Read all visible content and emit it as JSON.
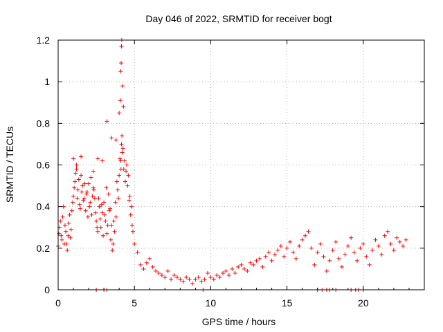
{
  "chart_data": {
    "type": "scatter",
    "title": "Day 046 of 2022, SRMTID for receiver bogt",
    "xlabel": "GPS time / hours",
    "ylabel": "SRMTID / TECUs",
    "xlim": [
      0,
      24
    ],
    "ylim": [
      0,
      1.2
    ],
    "xticks": [
      0,
      5,
      10,
      15,
      20
    ],
    "xtick_labels": [
      "0",
      "5",
      "10",
      "15",
      "20"
    ],
    "yticks": [
      0,
      0.2,
      0.4,
      0.6,
      0.8,
      1.0,
      1.2
    ],
    "ytick_labels": [
      "0",
      "0.2",
      "0.4",
      "0.6",
      "0.8",
      "1",
      "1.2"
    ],
    "grid": true,
    "marker": "+",
    "color": "#ff0000",
    "series": [
      {
        "name": "SRMTID",
        "x": [
          0.0,
          0.1,
          0.2,
          0.3,
          0.4,
          0.5,
          0.6,
          0.7,
          0.8,
          0.9,
          1.0,
          1.1,
          1.2,
          1.3,
          1.4,
          1.5,
          1.6,
          1.7,
          1.8,
          1.9,
          2.0,
          2.1,
          2.2,
          2.3,
          2.4,
          2.5,
          2.6,
          2.7,
          2.8,
          2.9,
          3.0,
          3.1,
          3.2,
          3.3,
          3.4,
          3.5,
          3.6,
          3.7,
          3.8,
          3.9,
          4.0,
          4.1,
          4.15,
          4.2,
          4.3,
          4.4,
          4.5,
          4.6,
          4.7,
          4.8,
          4.9,
          5.0,
          5.2,
          5.4,
          5.6,
          5.8,
          6.0,
          6.2,
          6.4,
          6.6,
          6.8,
          7.0,
          7.2,
          7.4,
          7.6,
          7.8,
          8.0,
          8.2,
          8.4,
          8.6,
          8.8,
          9.0,
          9.2,
          9.4,
          9.6,
          9.8,
          10.0,
          10.2,
          10.4,
          10.6,
          10.8,
          11.0,
          11.2,
          11.4,
          11.6,
          11.8,
          12.0,
          12.2,
          12.4,
          12.6,
          12.8,
          13.0,
          13.2,
          13.4,
          13.6,
          13.8,
          14.0,
          14.2,
          14.4,
          14.6,
          14.8,
          15.0,
          15.2,
          15.4,
          15.6,
          15.8,
          16.0,
          16.2,
          16.4,
          16.6,
          16.8,
          17.0,
          17.2,
          17.4,
          17.6,
          17.8,
          18.0,
          18.2,
          18.4,
          18.6,
          18.8,
          19.0,
          19.2,
          19.4,
          19.6,
          19.8,
          20.0,
          20.2,
          20.4,
          20.6,
          20.8,
          21.0,
          21.2,
          21.4,
          21.6,
          21.8,
          22.0,
          22.2,
          22.4,
          22.6,
          22.8,
          0.05,
          0.15,
          0.25,
          0.35,
          0.45,
          0.55,
          0.65,
          0.75,
          0.85,
          0.95,
          1.05,
          1.15,
          1.25,
          1.35,
          1.45,
          1.55,
          1.65,
          1.75,
          1.85,
          1.95,
          2.05,
          2.15,
          2.25,
          2.35,
          2.45,
          2.55,
          2.65,
          2.75,
          2.85,
          2.95,
          3.05,
          3.15,
          3.25,
          3.35,
          3.45,
          3.55,
          3.65,
          3.75,
          3.85,
          3.95,
          4.05,
          4.12,
          4.18,
          4.25,
          4.35,
          4.45,
          4.55,
          4.65,
          4.75,
          4.85,
          1.0,
          1.2,
          1.5,
          2.3,
          2.6,
          2.9,
          3.2,
          3.5,
          3.8,
          4.0,
          4.08,
          4.1,
          4.13,
          4.15,
          4.17,
          4.22,
          4.28,
          2.5,
          3.0,
          3.2,
          9.5,
          17.0,
          17.3,
          17.6,
          17.8,
          18.2,
          19.2,
          19.5,
          19.7,
          20.0
        ],
        "y": [
          0.21,
          0.3,
          0.26,
          0.35,
          0.22,
          0.28,
          0.19,
          0.32,
          0.25,
          0.38,
          0.45,
          0.52,
          0.58,
          0.48,
          0.41,
          0.55,
          0.5,
          0.44,
          0.38,
          0.47,
          0.51,
          0.42,
          0.36,
          0.49,
          0.44,
          0.33,
          0.28,
          0.4,
          0.3,
          0.37,
          0.42,
          0.33,
          0.27,
          0.46,
          0.39,
          0.31,
          0.22,
          0.28,
          0.35,
          0.48,
          0.55,
          0.62,
          0.7,
          0.66,
          0.58,
          0.52,
          0.6,
          0.55,
          0.45,
          0.4,
          0.28,
          0.22,
          0.18,
          0.12,
          0.1,
          0.13,
          0.15,
          0.11,
          0.09,
          0.08,
          0.07,
          0.06,
          0.09,
          0.05,
          0.07,
          0.06,
          0.05,
          0.04,
          0.06,
          0.05,
          0.03,
          0.05,
          0.06,
          0.04,
          0.05,
          0.08,
          0.06,
          0.05,
          0.07,
          0.06,
          0.08,
          0.09,
          0.07,
          0.1,
          0.08,
          0.11,
          0.12,
          0.1,
          0.09,
          0.13,
          0.12,
          0.14,
          0.15,
          0.11,
          0.16,
          0.18,
          0.14,
          0.17,
          0.19,
          0.21,
          0.16,
          0.2,
          0.23,
          0.18,
          0.15,
          0.21,
          0.24,
          0.26,
          0.28,
          0.2,
          0.12,
          0.18,
          0.22,
          0.16,
          0.09,
          0.14,
          0.19,
          0.23,
          0.15,
          0.11,
          0.17,
          0.21,
          0.25,
          0.18,
          0.14,
          0.2,
          0.22,
          0.16,
          0.12,
          0.19,
          0.24,
          0.21,
          0.17,
          0.26,
          0.28,
          0.22,
          0.19,
          0.25,
          0.23,
          0.21,
          0.24,
          0.27,
          0.33,
          0.24,
          0.4,
          0.31,
          0.22,
          0.26,
          0.36,
          0.29,
          0.42,
          0.49,
          0.56,
          0.44,
          0.53,
          0.39,
          0.47,
          0.43,
          0.51,
          0.46,
          0.35,
          0.4,
          0.54,
          0.45,
          0.48,
          0.37,
          0.3,
          0.44,
          0.34,
          0.41,
          0.26,
          0.36,
          0.49,
          0.31,
          0.38,
          0.24,
          0.19,
          0.33,
          0.42,
          0.52,
          0.44,
          0.63,
          0.58,
          0.74,
          0.68,
          0.62,
          0.57,
          0.5,
          0.43,
          0.36,
          0.31,
          0.63,
          0.6,
          0.64,
          0.57,
          0.63,
          0.62,
          0.81,
          0.73,
          0.72,
          0.85,
          0.91,
          1.05,
          1.09,
          1.17,
          1.2,
          0.98,
          0.88,
          0.0,
          0.0,
          0.0,
          0.0,
          0.0,
          0.0,
          0.0,
          0.0,
          0.0,
          0.0,
          0.0,
          0.0,
          0.0
        ]
      }
    ]
  }
}
